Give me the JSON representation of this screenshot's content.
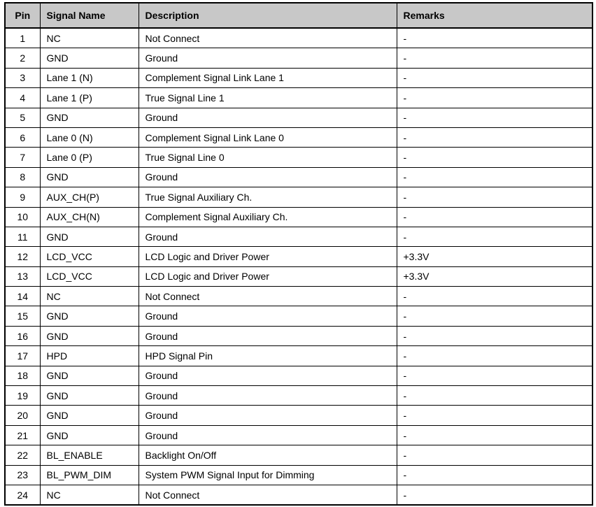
{
  "colors": {
    "header_bg": "#c8c8c8",
    "border": "#000000",
    "text": "#000000",
    "page_bg": "#ffffff"
  },
  "table": {
    "columns": [
      "Pin",
      "Signal Name",
      "Description",
      "Remarks"
    ],
    "rows": [
      {
        "pin": "1",
        "signal": "NC",
        "description": "Not Connect",
        "remarks": "-"
      },
      {
        "pin": "2",
        "signal": "GND",
        "description": "Ground",
        "remarks": "-"
      },
      {
        "pin": "3",
        "signal": "Lane 1 (N)",
        "description": "Complement Signal Link Lane 1",
        "remarks": "-"
      },
      {
        "pin": "4",
        "signal": "Lane 1 (P)",
        "description": "True Signal Line 1",
        "remarks": "-"
      },
      {
        "pin": "5",
        "signal": "GND",
        "description": "Ground",
        "remarks": "-"
      },
      {
        "pin": "6",
        "signal": "Lane 0 (N)",
        "description": "Complement Signal Link Lane 0",
        "remarks": "-"
      },
      {
        "pin": "7",
        "signal": "Lane 0 (P)",
        "description": "True Signal Line 0",
        "remarks": "-"
      },
      {
        "pin": "8",
        "signal": "GND",
        "description": "Ground",
        "remarks": "-"
      },
      {
        "pin": "9",
        "signal": "AUX_CH(P)",
        "description": "True Signal Auxiliary Ch.",
        "remarks": "-"
      },
      {
        "pin": "10",
        "signal": "AUX_CH(N)",
        "description": "Complement Signal Auxiliary Ch.",
        "remarks": "-"
      },
      {
        "pin": "11",
        "signal": "GND",
        "description": "Ground",
        "remarks": "-"
      },
      {
        "pin": "12",
        "signal": "LCD_VCC",
        "description": "LCD Logic and Driver Power",
        "remarks": "+3.3V"
      },
      {
        "pin": "13",
        "signal": "LCD_VCC",
        "description": "LCD Logic and Driver Power",
        "remarks": "+3.3V"
      },
      {
        "pin": "14",
        "signal": "NC",
        "description": "Not Connect",
        "remarks": "-"
      },
      {
        "pin": "15",
        "signal": "GND",
        "description": "Ground",
        "remarks": "-"
      },
      {
        "pin": "16",
        "signal": "GND",
        "description": "Ground",
        "remarks": "-"
      },
      {
        "pin": "17",
        "signal": "HPD",
        "description": "HPD Signal Pin",
        "remarks": "-"
      },
      {
        "pin": "18",
        "signal": "GND",
        "description": "Ground",
        "remarks": "-"
      },
      {
        "pin": "19",
        "signal": "GND",
        "description": "Ground",
        "remarks": "-"
      },
      {
        "pin": "20",
        "signal": "GND",
        "description": "Ground",
        "remarks": "-"
      },
      {
        "pin": "21",
        "signal": "GND",
        "description": "Ground",
        "remarks": "-"
      },
      {
        "pin": "22",
        "signal": "BL_ENABLE",
        "description": "Backlight On/Off",
        "remarks": "-"
      },
      {
        "pin": "23",
        "signal": "BL_PWM_DIM",
        "description": "System PWM Signal Input for Dimming",
        "remarks": "-"
      },
      {
        "pin": "24",
        "signal": "NC",
        "description": "Not Connect",
        "remarks": "-"
      }
    ]
  }
}
